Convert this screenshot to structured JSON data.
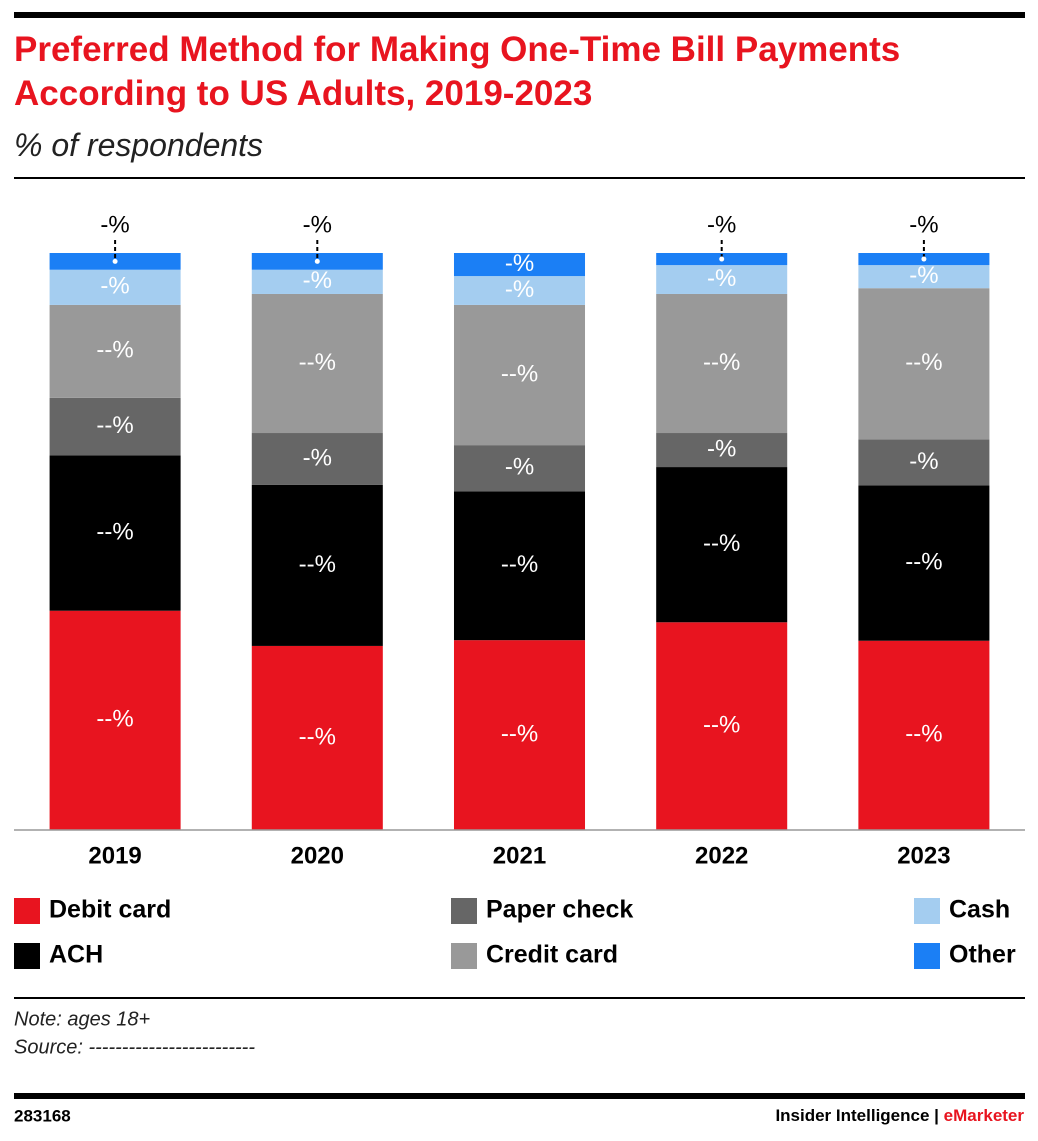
{
  "chart_data": {
    "type": "stacked_bar",
    "title": "Preferred Method for Making One-Time Bill Payments According to US Adults, 2019-2023",
    "subtitle": "% of respondents",
    "categories": [
      "2019",
      "2020",
      "2021",
      "2022",
      "2023"
    ],
    "ylim": [
      0,
      100
    ],
    "series": [
      {
        "name": "Debit card",
        "color": "#e8141f",
        "values": [
          38.0,
          31.9,
          32.9,
          36.0,
          32.8
        ],
        "value_labels": [
          "--%",
          "--%",
          "--%",
          "--%",
          "--%"
        ]
      },
      {
        "name": "ACH",
        "color": "#000000",
        "values": [
          26.9,
          27.9,
          25.8,
          26.9,
          26.9
        ],
        "value_labels": [
          "--%",
          "--%",
          "--%",
          "--%",
          "--%"
        ]
      },
      {
        "name": "Paper check",
        "color": "#666666",
        "values": [
          10.0,
          9.0,
          8.0,
          5.9,
          8.0
        ],
        "value_labels": [
          "--%",
          "-%",
          "-%",
          "-%",
          "-%"
        ]
      },
      {
        "name": "Credit card",
        "color": "#999999",
        "values": [
          16.1,
          24.1,
          24.3,
          24.1,
          26.2
        ],
        "value_labels": [
          "--%",
          "--%",
          "--%",
          "--%",
          "--%"
        ]
      },
      {
        "name": "Cash",
        "color": "#a4cdf0",
        "values": [
          6.1,
          4.2,
          5.0,
          5.0,
          4.0
        ],
        "value_labels": [
          "-%",
          "-%",
          "-%",
          "-%",
          "-%"
        ]
      },
      {
        "name": "Other",
        "color": "#1b7ff5",
        "values": [
          2.9,
          2.9,
          4.0,
          2.1,
          2.1
        ],
        "value_labels": [
          "-%",
          "-%",
          "-%",
          "-%",
          "-%"
        ]
      }
    ],
    "note": "Note: ages 18+",
    "source": "Source: -------------------------",
    "chart_id": "283168",
    "credit": [
      "Insider Intelligence",
      "|",
      "eMarketer"
    ]
  }
}
